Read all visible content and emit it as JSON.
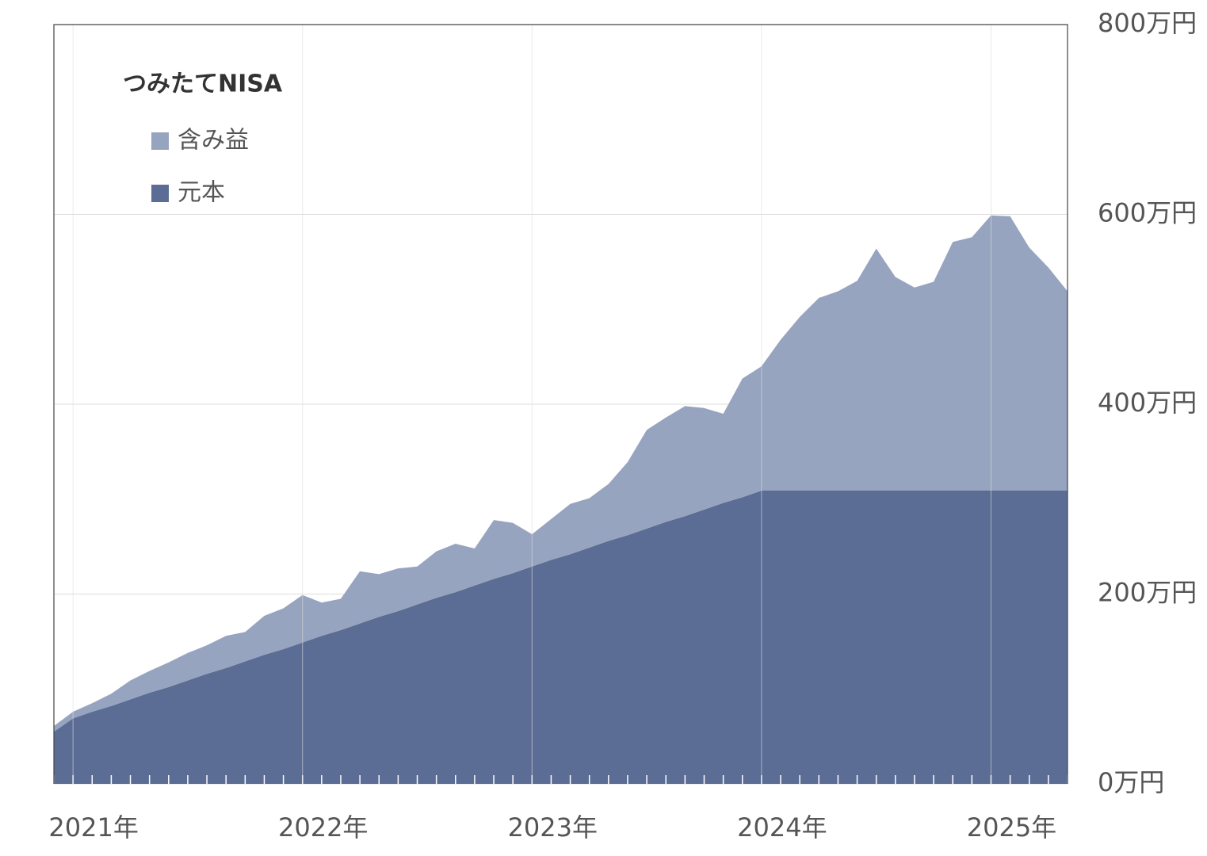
{
  "chart_data": {
    "type": "area",
    "stacked": true,
    "legend": "upper left",
    "grid": true,
    "legend_title": "つみたてNISA",
    "categories": [
      null,
      "2021年",
      null,
      null,
      null,
      null,
      null,
      null,
      null,
      null,
      null,
      null,
      null,
      "2022年",
      null,
      null,
      null,
      null,
      null,
      null,
      null,
      null,
      null,
      null,
      null,
      "2023年",
      null,
      null,
      null,
      null,
      null,
      null,
      null,
      null,
      null,
      null,
      null,
      "2024年",
      null,
      null,
      null,
      null,
      null,
      null,
      null,
      null,
      null,
      null,
      null,
      "2025年",
      null,
      null,
      null,
      null
    ],
    "series": [
      {
        "name": "含み益",
        "color": "#97a4bf",
        "values": [
          6,
          7,
          9,
          13,
          20,
          23,
          26,
          29,
          30,
          34,
          31,
          41,
          43,
          50,
          35,
          33,
          55,
          45,
          45,
          40,
          49,
          51,
          39,
          62,
          53,
          34,
          43,
          53,
          52,
          60,
          77,
          104,
          110,
          116,
          107,
          94,
          125,
          131,
          159,
          183,
          203,
          210,
          221,
          255,
          225,
          214,
          220,
          262,
          267,
          290,
          289,
          256,
          235,
          210
        ]
      },
      {
        "name": "元本",
        "color": "#5c6d95",
        "values": [
          55,
          69,
          76,
          82,
          89,
          96,
          102,
          109,
          116,
          122,
          129,
          136,
          142,
          149,
          156,
          162,
          169,
          176,
          182,
          189,
          196,
          202,
          209,
          216,
          222,
          229,
          236,
          242,
          249,
          256,
          262,
          269,
          276,
          282,
          289,
          296,
          302,
          309,
          309,
          309,
          309,
          309,
          309,
          309,
          309,
          309,
          309,
          309,
          309,
          309,
          309,
          309,
          309,
          309
        ]
      }
    ],
    "ylim": [
      0,
      800
    ],
    "yticks": [
      {
        "value": 0,
        "label": "0万円"
      },
      {
        "value": 200,
        "label": "200万円"
      },
      {
        "value": 400,
        "label": "400万円"
      },
      {
        "value": 600,
        "label": "600万円"
      },
      {
        "value": 800,
        "label": "800万円"
      }
    ]
  }
}
